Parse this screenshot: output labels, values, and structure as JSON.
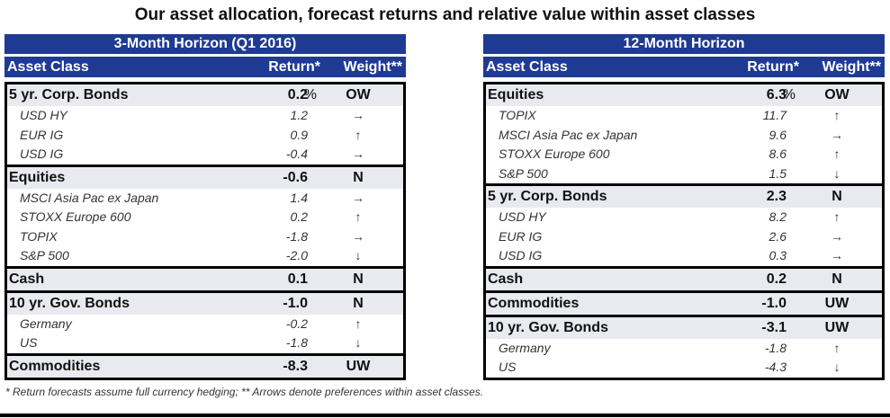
{
  "title": "Our asset allocation, forecast returns and relative value within asset classes",
  "column_headers": {
    "asset_class": "Asset Class",
    "return": "Return*",
    "weight": "Weight**"
  },
  "percent_sign": "%",
  "panels": [
    {
      "heading": "3-Month Horizon (Q1 2016)",
      "groups": [
        {
          "label": "5 yr. Corp. Bonds",
          "return": "0.2",
          "weight": "OW",
          "items": [
            {
              "label": "USD HY",
              "return": "1.2",
              "arrow": "→"
            },
            {
              "label": "EUR IG",
              "return": "0.9",
              "arrow": "↑"
            },
            {
              "label": "USD IG",
              "return": "-0.4",
              "arrow": "→"
            }
          ]
        },
        {
          "label": "Equities",
          "return": "-0.6",
          "weight": "N",
          "items": [
            {
              "label": "MSCI Asia Pac ex Japan",
              "return": "1.4",
              "arrow": "→"
            },
            {
              "label": "STOXX Europe 600",
              "return": "0.2",
              "arrow": "↑"
            },
            {
              "label": "TOPIX",
              "return": "-1.8",
              "arrow": "→"
            },
            {
              "label": "S&P 500",
              "return": "-2.0",
              "arrow": "↓"
            }
          ]
        },
        {
          "label": "Cash",
          "return": "0.1",
          "weight": "N",
          "items": []
        },
        {
          "label": "10 yr. Gov. Bonds",
          "return": "-1.0",
          "weight": "N",
          "items": [
            {
              "label": "Germany",
              "return": "-0.2",
              "arrow": "↑"
            },
            {
              "label": "US",
              "return": "-1.8",
              "arrow": "↓"
            }
          ]
        },
        {
          "label": "Commodities",
          "return": "-8.3",
          "weight": "UW",
          "items": []
        }
      ]
    },
    {
      "heading": "12-Month Horizon",
      "groups": [
        {
          "label": "Equities",
          "return": "6.3",
          "weight": "OW",
          "items": [
            {
              "label": "TOPIX",
              "return": "11.7",
              "arrow": "↑"
            },
            {
              "label": "MSCI Asia Pac ex Japan",
              "return": "9.6",
              "arrow": "→"
            },
            {
              "label": "STOXX Europe 600",
              "return": "8.6",
              "arrow": "↑"
            },
            {
              "label": "S&P 500",
              "return": "1.5",
              "arrow": "↓"
            }
          ]
        },
        {
          "label": "5 yr. Corp. Bonds",
          "return": "2.3",
          "weight": "N",
          "items": [
            {
              "label": "USD HY",
              "return": "8.2",
              "arrow": "↑"
            },
            {
              "label": "EUR IG",
              "return": "2.6",
              "arrow": "→"
            },
            {
              "label": "USD IG",
              "return": "0.3",
              "arrow": "→"
            }
          ]
        },
        {
          "label": "Cash",
          "return": "0.2",
          "weight": "N",
          "items": []
        },
        {
          "label": "Commodities",
          "return": "-1.0",
          "weight": "UW",
          "items": []
        },
        {
          "label": "10 yr. Gov. Bonds",
          "return": "-3.1",
          "weight": "UW",
          "items": [
            {
              "label": "Germany",
              "return": "-1.8",
              "arrow": "↑"
            },
            {
              "label": "US",
              "return": "-4.3",
              "arrow": "↓"
            }
          ]
        }
      ]
    }
  ],
  "footnote": "* Return forecasts assume full currency hedging; ** Arrows denote preferences within asset classes."
}
